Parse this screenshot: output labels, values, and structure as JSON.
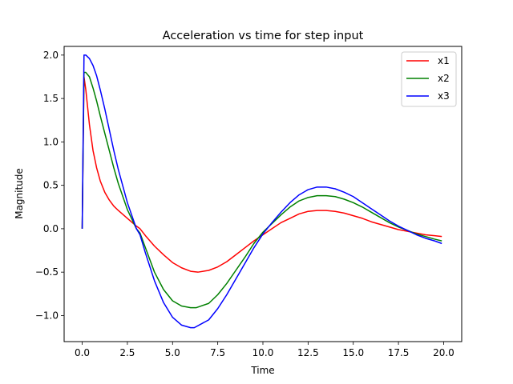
{
  "chart_data": {
    "type": "line",
    "title": "Acceleration vs time for step input",
    "xlabel": "Time",
    "ylabel": "Magnitude",
    "xlim": [
      -1.0,
      21.0
    ],
    "ylim": [
      -1.3,
      2.1
    ],
    "xticks": [
      0.0,
      2.5,
      5.0,
      7.5,
      10.0,
      12.5,
      15.0,
      17.5,
      20.0
    ],
    "xtick_labels": [
      "0.0",
      "2.5",
      "5.0",
      "7.5",
      "10.0",
      "12.5",
      "15.0",
      "17.5",
      "20.0"
    ],
    "yticks": [
      -1.0,
      -0.5,
      0.0,
      0.5,
      1.0,
      1.5,
      2.0
    ],
    "ytick_labels": [
      "−1.0",
      "−0.5",
      "0.0",
      "0.5",
      "1.0",
      "1.5",
      "2.0"
    ],
    "grid": false,
    "legend_position": "top-right",
    "series": [
      {
        "name": "x1",
        "color": "#ff0000",
        "x": [
          0,
          0.1,
          0.2,
          0.4,
          0.6,
          0.8,
          1.0,
          1.25,
          1.5,
          1.75,
          2.0,
          2.5,
          3.0,
          3.2,
          3.5,
          4.0,
          4.5,
          5.0,
          5.5,
          6.0,
          6.4,
          7.0,
          7.5,
          8.0,
          8.5,
          9.0,
          9.5,
          10.0,
          10.5,
          11.0,
          11.5,
          12.0,
          12.5,
          13.0,
          13.5,
          14.0,
          14.5,
          15.0,
          15.5,
          16.0,
          16.5,
          17.0,
          17.5,
          18.0,
          18.5,
          19.0,
          19.5,
          19.9
        ],
        "y": [
          0,
          1.75,
          1.6,
          1.2,
          0.9,
          0.7,
          0.55,
          0.42,
          0.33,
          0.26,
          0.21,
          0.12,
          0.03,
          0.0,
          -0.08,
          -0.2,
          -0.3,
          -0.39,
          -0.45,
          -0.49,
          -0.5,
          -0.48,
          -0.44,
          -0.38,
          -0.3,
          -0.22,
          -0.14,
          -0.07,
          0.0,
          0.07,
          0.12,
          0.17,
          0.2,
          0.21,
          0.21,
          0.2,
          0.18,
          0.15,
          0.12,
          0.08,
          0.05,
          0.02,
          -0.01,
          -0.03,
          -0.05,
          -0.07,
          -0.08,
          -0.09
        ]
      },
      {
        "name": "x2",
        "color": "#008000",
        "x": [
          0,
          0.1,
          0.2,
          0.4,
          0.6,
          0.8,
          1.0,
          1.25,
          1.5,
          1.75,
          2.0,
          2.5,
          3.0,
          3.2,
          3.5,
          4.0,
          4.5,
          5.0,
          5.5,
          6.0,
          6.3,
          7.0,
          7.5,
          8.0,
          8.5,
          9.0,
          9.5,
          10.0,
          10.5,
          11.0,
          11.5,
          12.0,
          12.5,
          13.0,
          13.5,
          14.0,
          14.5,
          15.0,
          15.5,
          16.0,
          16.5,
          17.0,
          17.5,
          18.0,
          18.5,
          19.0,
          19.5,
          19.9
        ],
        "y": [
          0,
          1.8,
          1.8,
          1.75,
          1.62,
          1.47,
          1.3,
          1.1,
          0.9,
          0.7,
          0.52,
          0.22,
          0.0,
          -0.05,
          -0.22,
          -0.5,
          -0.7,
          -0.83,
          -0.89,
          -0.91,
          -0.91,
          -0.86,
          -0.76,
          -0.63,
          -0.48,
          -0.33,
          -0.17,
          -0.04,
          0.06,
          0.16,
          0.25,
          0.32,
          0.36,
          0.38,
          0.38,
          0.37,
          0.34,
          0.3,
          0.25,
          0.19,
          0.13,
          0.07,
          0.02,
          -0.02,
          -0.06,
          -0.09,
          -0.12,
          -0.14
        ]
      },
      {
        "name": "x3",
        "color": "#0000ff",
        "x": [
          0,
          0.1,
          0.2,
          0.4,
          0.6,
          0.8,
          1.0,
          1.25,
          1.5,
          1.75,
          2.0,
          2.5,
          3.0,
          3.2,
          3.5,
          4.0,
          4.5,
          5.0,
          5.5,
          6.0,
          6.2,
          7.0,
          7.5,
          8.0,
          8.5,
          9.0,
          9.5,
          10.0,
          10.5,
          11.0,
          11.5,
          12.0,
          12.5,
          13.0,
          13.5,
          14.0,
          14.5,
          15.0,
          15.5,
          16.0,
          16.5,
          17.0,
          17.5,
          18.0,
          18.5,
          19.0,
          19.5,
          19.9
        ],
        "y": [
          0,
          2.0,
          2.0,
          1.96,
          1.88,
          1.76,
          1.6,
          1.38,
          1.14,
          0.9,
          0.68,
          0.3,
          0.0,
          -0.07,
          -0.28,
          -0.6,
          -0.85,
          -1.02,
          -1.11,
          -1.14,
          -1.14,
          -1.05,
          -0.92,
          -0.76,
          -0.58,
          -0.4,
          -0.22,
          -0.06,
          0.07,
          0.19,
          0.3,
          0.39,
          0.45,
          0.48,
          0.48,
          0.46,
          0.42,
          0.37,
          0.3,
          0.23,
          0.16,
          0.09,
          0.03,
          -0.02,
          -0.07,
          -0.11,
          -0.14,
          -0.17
        ]
      }
    ]
  }
}
